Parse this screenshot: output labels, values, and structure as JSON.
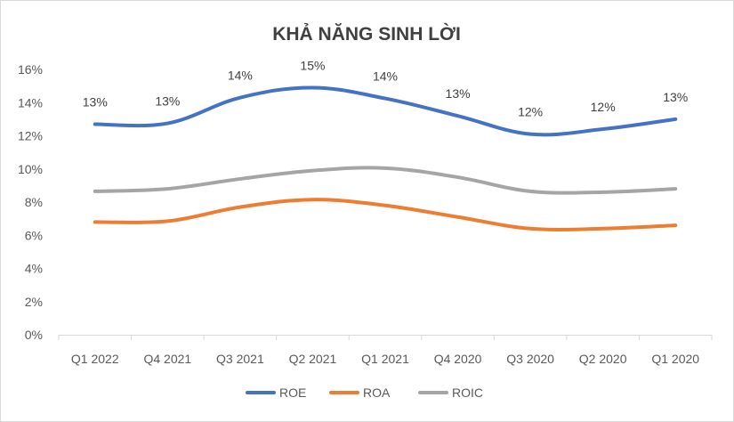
{
  "chart_data": {
    "type": "line",
    "title": "KHẢ NĂNG SINH LỜI",
    "categories": [
      "Q1 2022",
      "Q4 2021",
      "Q3 2021",
      "Q2 2021",
      "Q1 2021",
      "Q4 2020",
      "Q3 2020",
      "Q2 2020",
      "Q1 2020"
    ],
    "yticks": [
      "0%",
      "2%",
      "4%",
      "6%",
      "8%",
      "10%",
      "12%",
      "14%",
      "16%"
    ],
    "ylim": [
      0,
      16
    ],
    "grid": false,
    "legend_position": "bottom",
    "series": [
      {
        "name": "ROE",
        "color": "#4472c4",
        "values": [
          12.7,
          12.75,
          14.3,
          14.9,
          14.25,
          13.2,
          12.1,
          12.4,
          13.0
        ],
        "labels": [
          "13%",
          "13%",
          "14%",
          "15%",
          "14%",
          "13%",
          "12%",
          "12%",
          "13%"
        ]
      },
      {
        "name": "ROA",
        "color": "#ed7d31",
        "values": [
          6.8,
          6.85,
          7.7,
          8.15,
          7.8,
          7.1,
          6.4,
          6.4,
          6.6
        ]
      },
      {
        "name": "ROIC",
        "color": "#a5a5a5",
        "values": [
          8.65,
          8.8,
          9.4,
          9.9,
          10.05,
          9.5,
          8.65,
          8.6,
          8.8
        ]
      }
    ]
  }
}
